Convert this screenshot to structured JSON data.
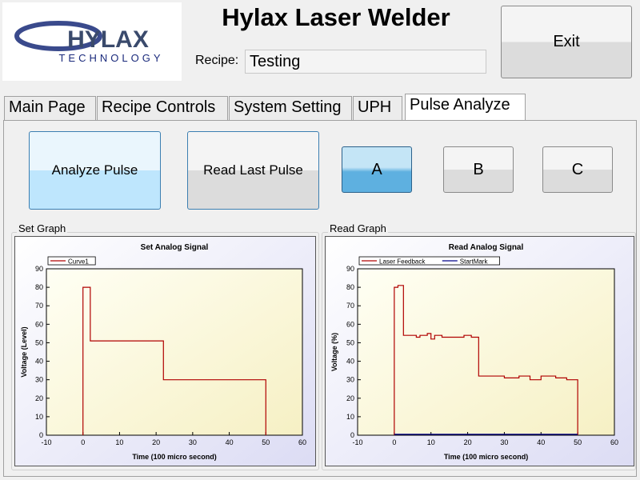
{
  "header": {
    "logo": {
      "brand": "HYLAX",
      "tagline": "TECHNOLOGY"
    },
    "title": "Hylax Laser Welder",
    "recipe_label": "Recipe:",
    "recipe_value": "Testing",
    "exit_button": "Exit"
  },
  "tabs": [
    "Main Page",
    "Recipe Controls",
    "System Setting",
    "UPH",
    "Pulse Analyze"
  ],
  "buttons": {
    "analyze": "Analyze Pulse",
    "read_last": "Read Last Pulse",
    "channels": [
      "A",
      "B",
      "C"
    ]
  },
  "groups": [
    "Set Graph",
    "Read Graph"
  ],
  "chart_data": [
    {
      "type": "line",
      "title": "Set Analog Signal",
      "x_label": "Time (100 micro second)",
      "y_label": "Voltage (Level)",
      "xlim": [
        -10,
        60
      ],
      "xticks": [
        -10,
        0,
        10,
        20,
        30,
        40,
        50,
        60
      ],
      "ylim": [
        0,
        90
      ],
      "yticks": [
        0,
        10,
        20,
        30,
        40,
        50,
        60,
        70,
        80,
        90
      ],
      "grid": false,
      "legend": "top-left",
      "series": [
        {
          "name": "Curve1",
          "color": "#b00000",
          "x": [
            0,
            0,
            2,
            2,
            22,
            22,
            50,
            50
          ],
          "values": [
            0,
            80,
            80,
            51,
            51,
            30,
            30,
            0
          ]
        }
      ]
    },
    {
      "type": "line",
      "title": "Read Analog Signal",
      "x_label": "Time (100 micro second)",
      "y_label": "Voltage (%)",
      "xlim": [
        -10,
        60
      ],
      "xticks": [
        -10,
        0,
        10,
        20,
        30,
        40,
        50,
        60
      ],
      "ylim": [
        0,
        90
      ],
      "yticks": [
        0,
        10,
        20,
        30,
        40,
        50,
        60,
        70,
        80,
        90
      ],
      "grid": false,
      "legend": "top-left",
      "series": [
        {
          "name": "Laser Feedback",
          "color": "#b00000",
          "x": [
            0,
            0,
            1,
            1,
            2.5,
            2.5,
            6,
            6,
            7,
            7,
            9,
            9,
            10,
            10,
            11,
            11,
            13,
            13,
            16,
            16,
            19,
            19,
            21,
            21,
            23,
            23,
            30,
            30,
            34,
            34,
            37,
            37,
            40,
            40,
            44,
            44,
            47,
            47,
            50,
            50
          ],
          "values": [
            0,
            80,
            80,
            81,
            81,
            54,
            54,
            53,
            53,
            54,
            54,
            55,
            55,
            52,
            52,
            54,
            54,
            53,
            53,
            53,
            53,
            54,
            54,
            53,
            53,
            32,
            32,
            31,
            31,
            32,
            32,
            30,
            30,
            32,
            32,
            31,
            31,
            30,
            30,
            0
          ]
        },
        {
          "name": "StartMark",
          "color": "#00008b",
          "x": [
            0,
            50
          ],
          "values": [
            0.5,
            0.5
          ]
        }
      ]
    }
  ]
}
